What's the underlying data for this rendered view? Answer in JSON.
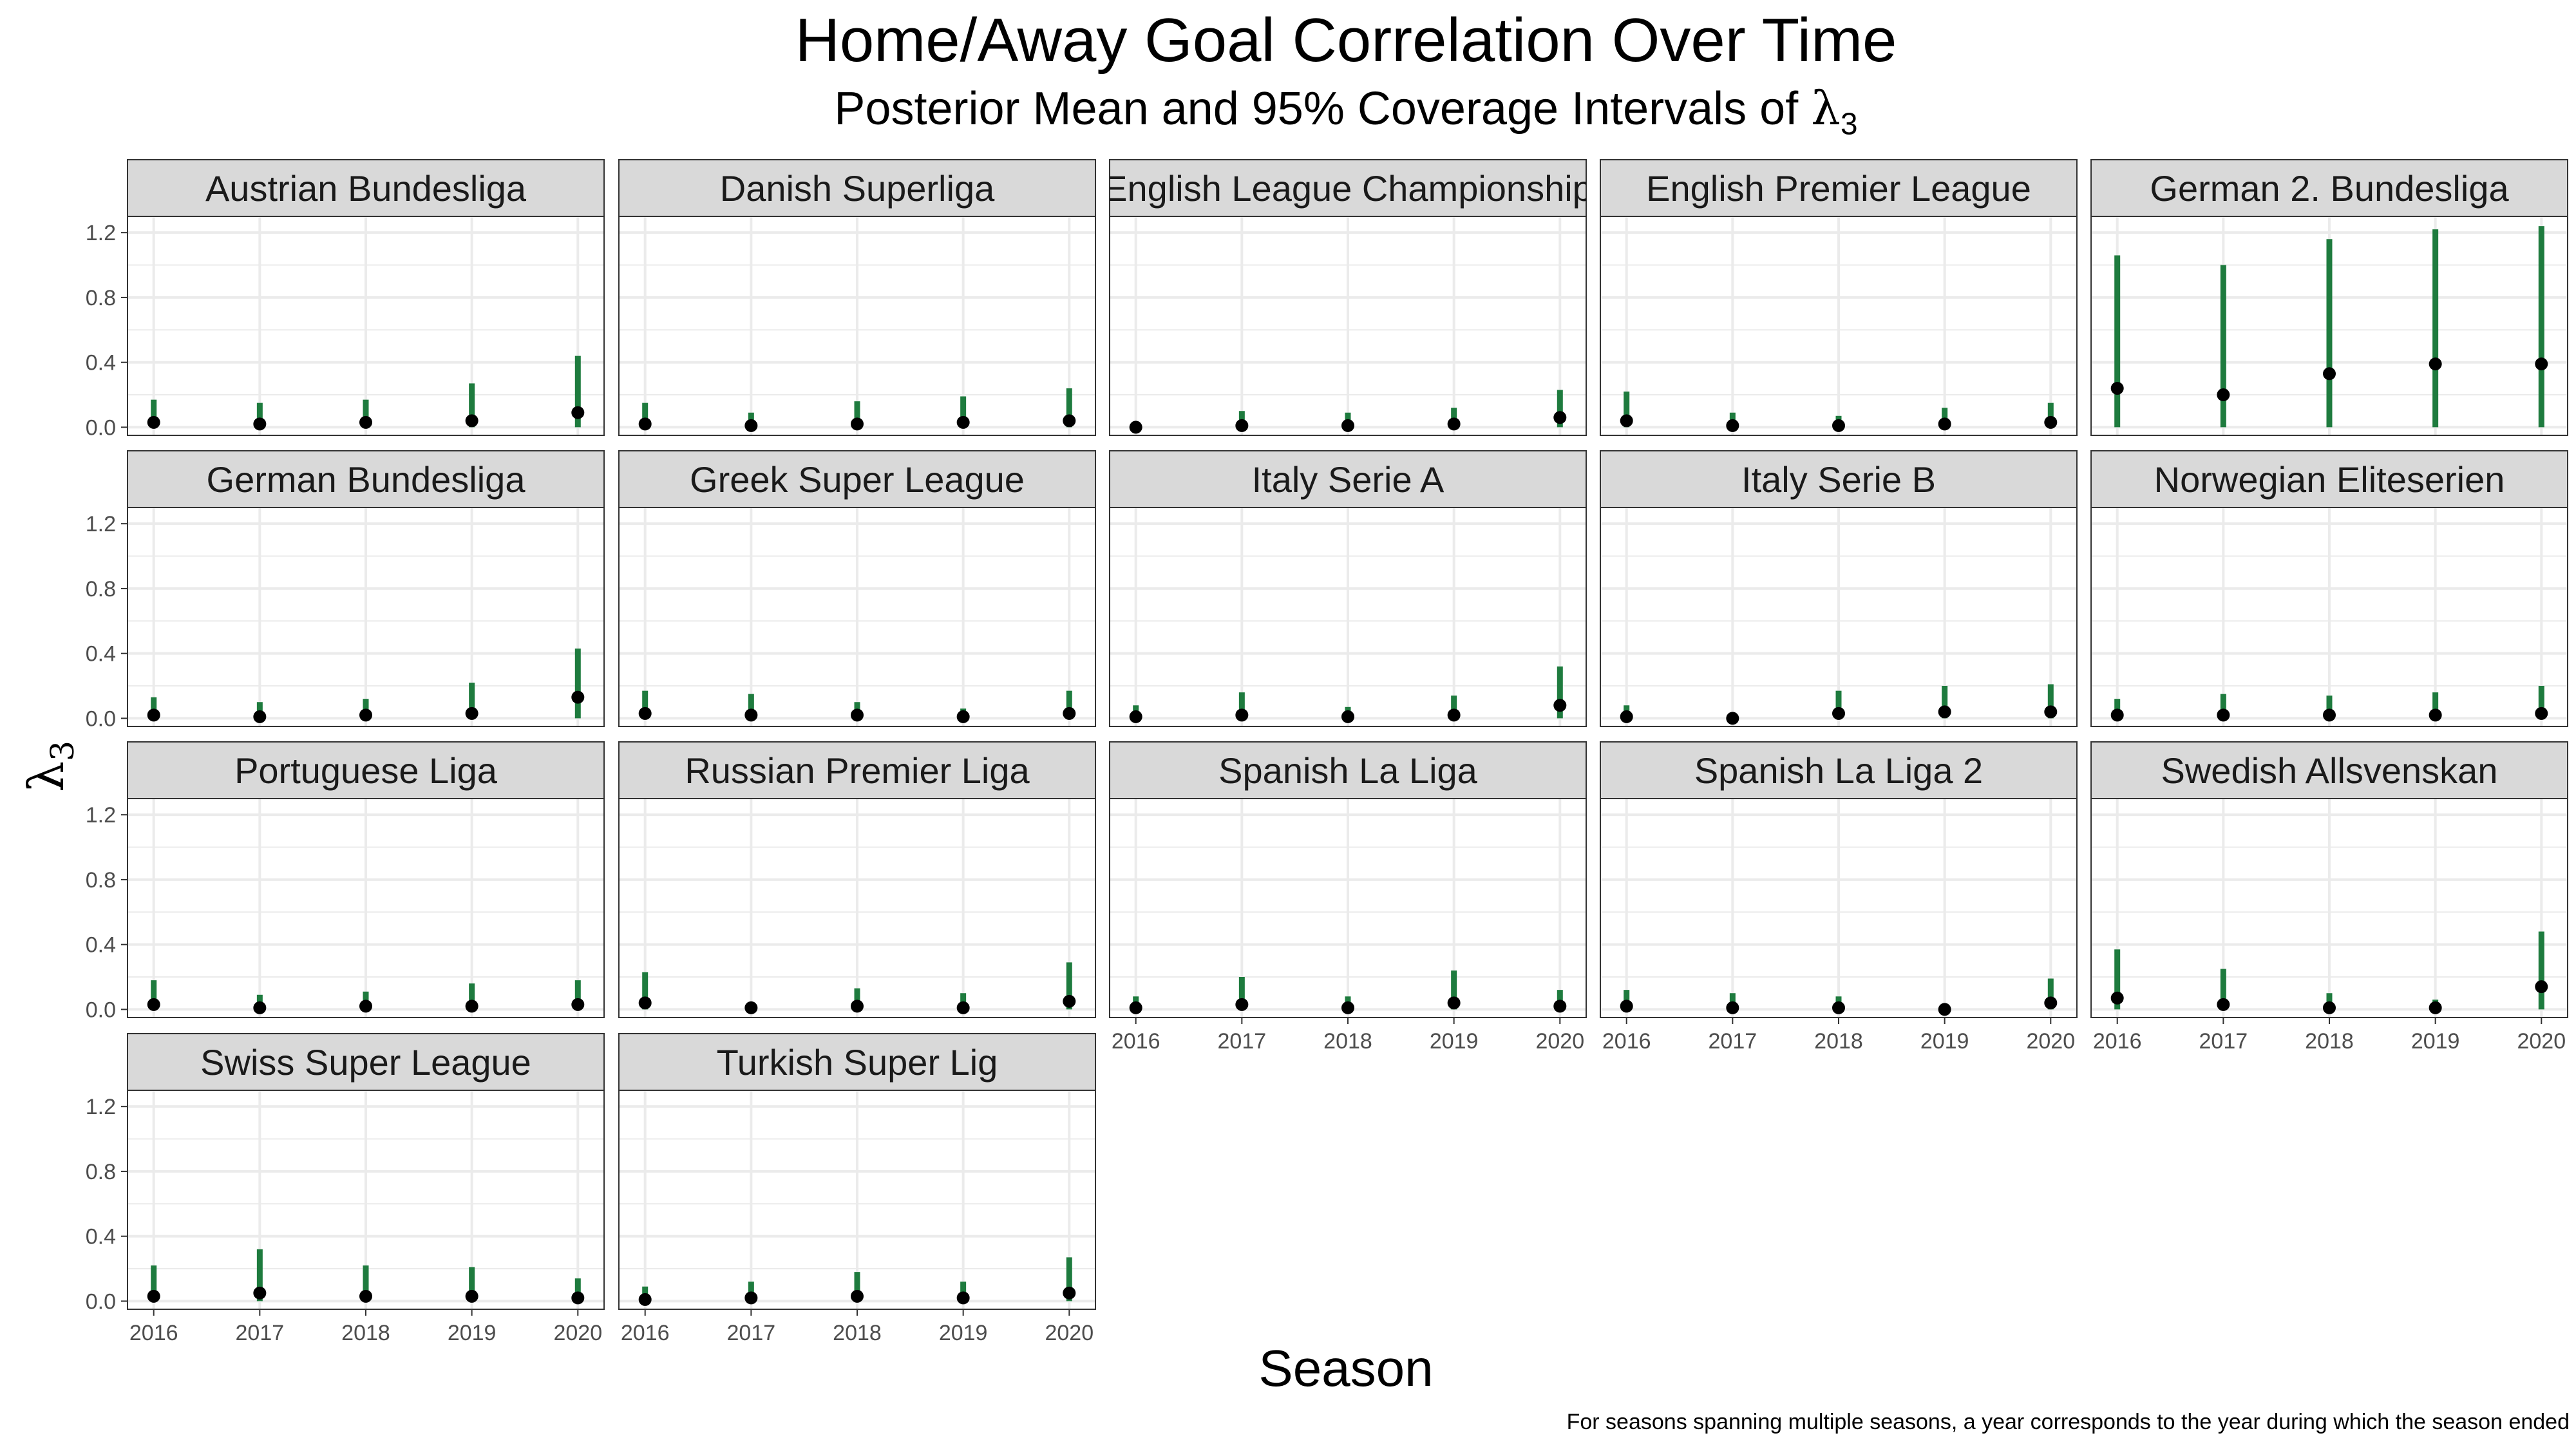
{
  "title": "Home/Away Goal Correlation Over Time",
  "subtitle": {
    "prefix": "Posterior Mean and 95% Coverage Intervals of ",
    "symbol": "λ",
    "subscript": "3"
  },
  "footnote": "For seasons spanning multiple seasons, a year corresponds to the year during which the season ended",
  "chart_data": {
    "type": "pointrange",
    "xlabel": "Season",
    "ylabel": {
      "symbol": "λ",
      "subscript": "3"
    },
    "ylim": [
      -0.05,
      1.3
    ],
    "yticks": [
      "0.0",
      "0.4",
      "0.8",
      "1.2"
    ],
    "x": [
      "2016",
      "2017",
      "2018",
      "2019",
      "2020"
    ],
    "grid": true,
    "colors": {
      "interval": "#1e7b3e",
      "point": "#000000",
      "strip": "#d9d9d9",
      "grid": "#ebebeb"
    },
    "panels": [
      {
        "name": "Austrian Bundesliga",
        "mean": [
          0.03,
          0.02,
          0.03,
          0.04,
          0.09
        ],
        "lower": [
          0.0,
          0.0,
          0.0,
          0.0,
          0.0
        ],
        "upper": [
          0.17,
          0.15,
          0.17,
          0.27,
          0.44
        ]
      },
      {
        "name": "Danish Superliga",
        "mean": [
          0.02,
          0.01,
          0.02,
          0.03,
          0.04
        ],
        "lower": [
          0.0,
          0.0,
          0.0,
          0.0,
          0.0
        ],
        "upper": [
          0.15,
          0.09,
          0.16,
          0.19,
          0.24
        ]
      },
      {
        "name": "English League Championship",
        "mean": [
          0.0,
          0.01,
          0.01,
          0.02,
          0.06
        ],
        "lower": [
          0.0,
          0.0,
          0.0,
          0.0,
          0.0
        ],
        "upper": [
          0.02,
          0.1,
          0.09,
          0.12,
          0.23
        ]
      },
      {
        "name": "English Premier League",
        "mean": [
          0.04,
          0.01,
          0.01,
          0.02,
          0.03
        ],
        "lower": [
          0.0,
          0.0,
          0.0,
          0.0,
          0.0
        ],
        "upper": [
          0.22,
          0.09,
          0.07,
          0.12,
          0.15
        ]
      },
      {
        "name": "German 2. Bundesliga",
        "mean": [
          0.24,
          0.2,
          0.33,
          0.39,
          0.39
        ],
        "lower": [
          0.0,
          0.0,
          0.0,
          0.0,
          0.0
        ],
        "upper": [
          1.06,
          1.0,
          1.16,
          1.22,
          1.24
        ]
      },
      {
        "name": "German Bundesliga",
        "mean": [
          0.02,
          0.01,
          0.02,
          0.03,
          0.13
        ],
        "lower": [
          0.0,
          0.0,
          0.0,
          0.0,
          0.0
        ],
        "upper": [
          0.13,
          0.1,
          0.12,
          0.22,
          0.43
        ]
      },
      {
        "name": "Greek Super League",
        "mean": [
          0.03,
          0.02,
          0.02,
          0.01,
          0.03
        ],
        "lower": [
          0.0,
          0.0,
          0.0,
          0.0,
          0.0
        ],
        "upper": [
          0.17,
          0.15,
          0.1,
          0.06,
          0.17
        ]
      },
      {
        "name": "Italy Serie A",
        "mean": [
          0.01,
          0.02,
          0.01,
          0.02,
          0.08
        ],
        "lower": [
          0.0,
          0.0,
          0.0,
          0.0,
          0.0
        ],
        "upper": [
          0.08,
          0.16,
          0.07,
          0.14,
          0.32
        ]
      },
      {
        "name": "Italy Serie B",
        "mean": [
          0.01,
          0.0,
          0.03,
          0.04,
          0.04
        ],
        "lower": [
          0.0,
          0.0,
          0.0,
          0.0,
          0.0
        ],
        "upper": [
          0.08,
          0.02,
          0.17,
          0.2,
          0.21
        ]
      },
      {
        "name": "Norwegian Eliteserien",
        "mean": [
          0.02,
          0.02,
          0.02,
          0.02,
          0.03
        ],
        "lower": [
          0.0,
          0.0,
          0.0,
          0.0,
          0.0
        ],
        "upper": [
          0.12,
          0.15,
          0.14,
          0.16,
          0.2
        ]
      },
      {
        "name": "Portuguese Liga",
        "mean": [
          0.03,
          0.01,
          0.02,
          0.02,
          0.03
        ],
        "lower": [
          0.0,
          0.0,
          0.0,
          0.0,
          0.0
        ],
        "upper": [
          0.18,
          0.09,
          0.11,
          0.16,
          0.18
        ]
      },
      {
        "name": "Russian Premier Liga",
        "mean": [
          0.04,
          0.01,
          0.02,
          0.01,
          0.05
        ],
        "lower": [
          0.0,
          0.0,
          0.0,
          0.0,
          0.0
        ],
        "upper": [
          0.23,
          0.04,
          0.13,
          0.1,
          0.29
        ]
      },
      {
        "name": "Spanish La Liga",
        "mean": [
          0.01,
          0.03,
          0.01,
          0.04,
          0.02
        ],
        "lower": [
          0.0,
          0.0,
          0.0,
          0.0,
          0.0
        ],
        "upper": [
          0.08,
          0.2,
          0.08,
          0.24,
          0.12
        ]
      },
      {
        "name": "Spanish La Liga 2",
        "mean": [
          0.02,
          0.01,
          0.01,
          0.0,
          0.04
        ],
        "lower": [
          0.0,
          0.0,
          0.0,
          0.0,
          0.0
        ],
        "upper": [
          0.12,
          0.1,
          0.08,
          0.02,
          0.19
        ]
      },
      {
        "name": "Swedish Allsvenskan",
        "mean": [
          0.07,
          0.03,
          0.01,
          0.01,
          0.14
        ],
        "lower": [
          0.0,
          0.0,
          0.0,
          0.0,
          0.0
        ],
        "upper": [
          0.37,
          0.25,
          0.1,
          0.06,
          0.48
        ]
      },
      {
        "name": "Swiss Super League",
        "mean": [
          0.03,
          0.05,
          0.03,
          0.03,
          0.02
        ],
        "lower": [
          0.0,
          0.0,
          0.0,
          0.0,
          0.0
        ],
        "upper": [
          0.22,
          0.32,
          0.22,
          0.21,
          0.14
        ]
      },
      {
        "name": "Turkish Super Lig",
        "mean": [
          0.01,
          0.02,
          0.03,
          0.02,
          0.05
        ],
        "lower": [
          0.0,
          0.0,
          0.0,
          0.0,
          0.0
        ],
        "upper": [
          0.09,
          0.12,
          0.18,
          0.12,
          0.27
        ]
      }
    ]
  }
}
